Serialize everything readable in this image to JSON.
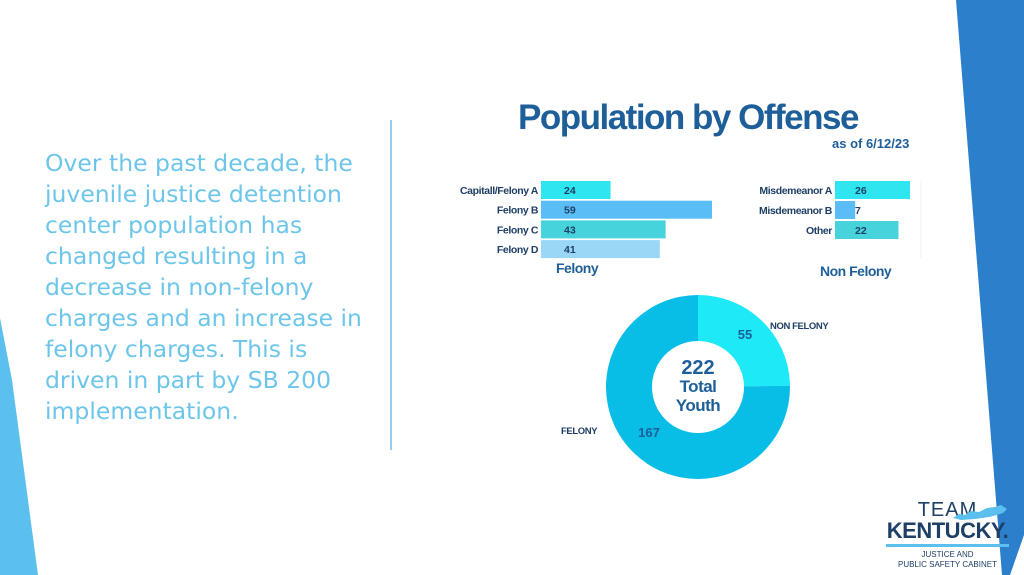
{
  "intro_text": "Over the past decade, the juvenile justice detention center population has changed resulting in a decrease in non-felony charges and an increase in felony charges. This is driven in part by SB 200 implementation.",
  "chart_data": [
    {
      "type": "bar",
      "orientation": "horizontal",
      "title": "Felony",
      "categories": [
        "Capitall/Felony A",
        "Felony B",
        "Felony C",
        "Felony D"
      ],
      "values": [
        24,
        59,
        43,
        41
      ],
      "colors": [
        "#2fe6f0",
        "#5bbdf5",
        "#47d3dc",
        "#9ad7f7"
      ]
    },
    {
      "type": "bar",
      "orientation": "horizontal",
      "title": "Non Felony",
      "categories": [
        "Misdemeanor A",
        "Misdemeanor B",
        "Other"
      ],
      "values": [
        26,
        7,
        22
      ],
      "colors": [
        "#2fe6f0",
        "#5bbdf5",
        "#47d3dc"
      ]
    },
    {
      "type": "pie",
      "variant": "donut",
      "categories": [
        "NON FELONY",
        "FELONY"
      ],
      "values": [
        55,
        167
      ],
      "colors": [
        "#1ee9f6",
        "#08bde6"
      ],
      "center_value": "222",
      "center_label_1": "Total",
      "center_label_2": "Youth"
    }
  ],
  "chart_title": "Population by Offense",
  "chart_subtitle": "as of 6/12/23",
  "logo": {
    "line1": "TEAM",
    "line2": "KENTUCKY.",
    "line3": "JUSTICE AND",
    "line4": "PUBLIC SAFETY CABINET"
  },
  "colors": {
    "accent_blue": "#2b7fcb",
    "light_blue": "#5bc0ee",
    "title_blue": "#1e5f99",
    "intro_text": "#6dc6ea"
  }
}
